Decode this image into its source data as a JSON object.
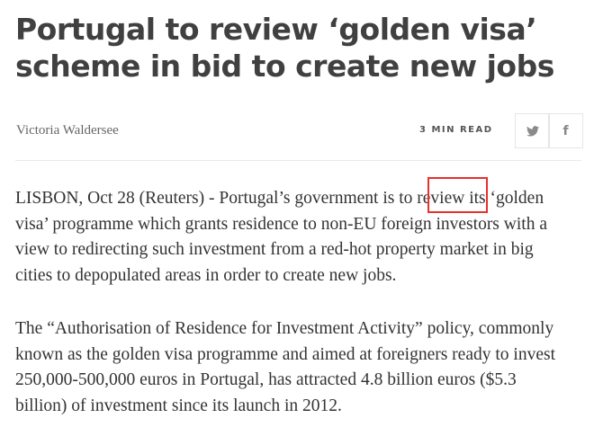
{
  "article": {
    "title_lines": [
      "Portugal to review ‘golden visa’",
      "scheme in bid to create new jobs"
    ],
    "author": "Victoria Waldersee",
    "read_time": "3 MIN READ",
    "share": {
      "twitter_icon": "twitter-icon",
      "facebook_icon": "facebook-icon",
      "twitter_glyph": "🐦",
      "facebook_glyph": "f"
    },
    "paragraphs": [
      [
        "LISBON, Oct 28 (Reuters) - Portugal’s government is to review its ‘golden",
        "visa’ programme which grants residence to non-EU foreign investors with a",
        "view to redirecting such investment from a red-hot property market in big",
        "cities to depopulated areas in order to create new jobs."
      ],
      [
        "The “Authorisation of Residence for Investment Activity” policy, commonly",
        "known as the golden visa programme and aimed at foreigners ready to invest",
        "250,000-500,000 euros in Portugal, has attracted 4.8 billion euros ($5.3",
        "billion) of investment since its launch in 2012."
      ]
    ],
    "highlight_color": "#e8302c"
  }
}
